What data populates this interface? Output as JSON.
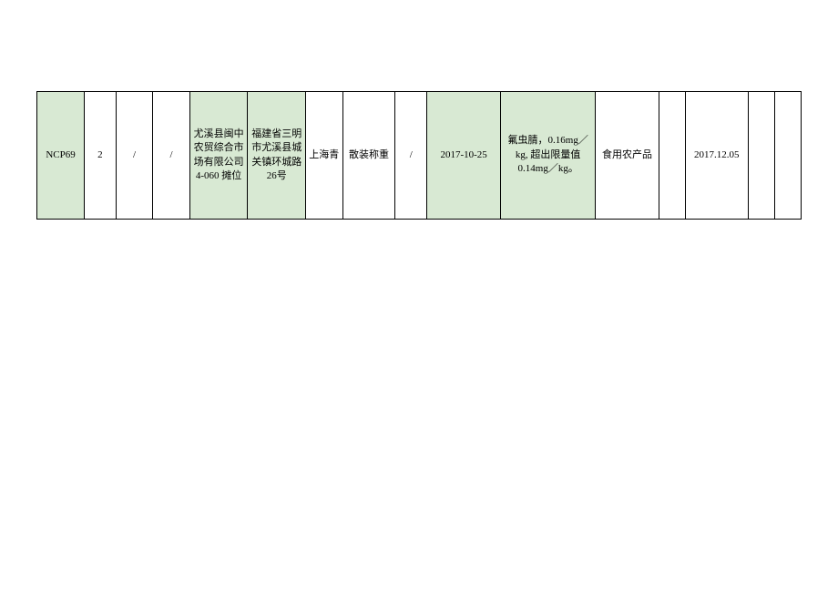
{
  "table": {
    "row": {
      "cells": [
        {
          "value": "NCP69",
          "highlight": true
        },
        {
          "value": "2",
          "highlight": false
        },
        {
          "value": "/",
          "highlight": false
        },
        {
          "value": "/",
          "highlight": false
        },
        {
          "value": "尤溪县闽中农贸综合市场有限公司4-060 摊位",
          "highlight": true
        },
        {
          "value": "福建省三明市尤溪县城关镇环城路 26号",
          "highlight": true
        },
        {
          "value": "上海青",
          "highlight": false
        },
        {
          "value": "散装称重",
          "highlight": false
        },
        {
          "value": "/",
          "highlight": false
        },
        {
          "value": "2017-10-25",
          "highlight": true
        },
        {
          "value": "氟虫腈，0.16mg／kg, 超出限量值0.14mg／kg。",
          "highlight": true
        },
        {
          "value": "食用农产品",
          "highlight": false
        },
        {
          "value": "",
          "highlight": false
        },
        {
          "value": "2017.12.05",
          "highlight": false
        },
        {
          "value": "",
          "highlight": false
        },
        {
          "value": "",
          "highlight": false
        }
      ]
    },
    "colors": {
      "highlight_bg": "#d8e9d3",
      "border": "#000000",
      "text": "#000000"
    }
  }
}
